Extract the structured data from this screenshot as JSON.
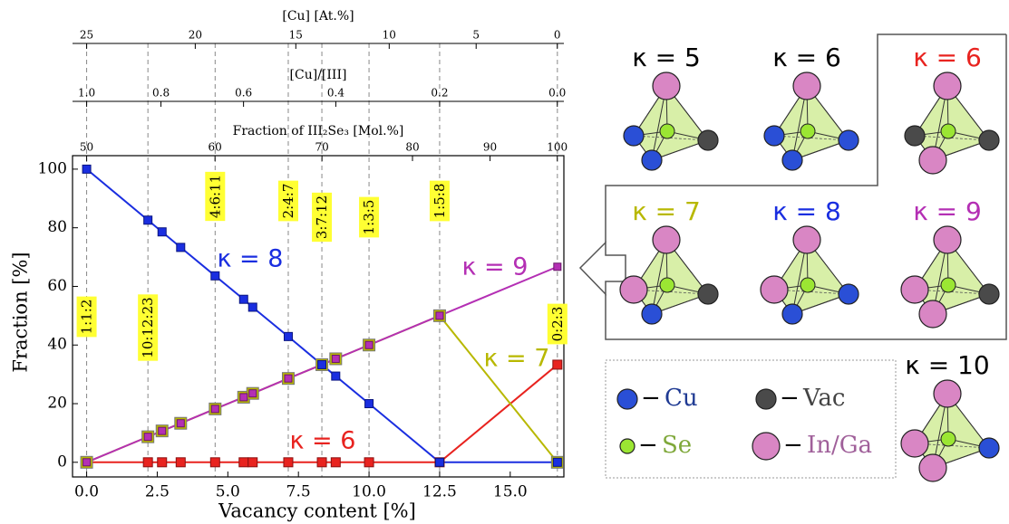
{
  "chart_data": {
    "type": "line",
    "x_label": "Vacancy content [%]",
    "y_label": "Fraction [%]",
    "xlim": [
      -0.5,
      16.9
    ],
    "ylim": [
      -5,
      104.6
    ],
    "xticks": [
      {
        "value": 0,
        "label": "0.0"
      },
      2.5,
      {
        "value": 5,
        "label": "5.0"
      },
      7.5,
      {
        "value": 10,
        "label": "10.0"
      },
      12.5,
      {
        "value": 15,
        "label": "15.0"
      }
    ],
    "yticks": [
      0,
      20,
      40,
      60,
      80,
      100
    ],
    "x": [
      0,
      2.17,
      2.67,
      3.33,
      4.55,
      5.56,
      5.88,
      7.14,
      8.33,
      8.82,
      10,
      12.5,
      16.67
    ],
    "series": [
      {
        "name": "κ = 6",
        "color": "#e8231f",
        "values": [
          0,
          0,
          0,
          0,
          0,
          0,
          0,
          0,
          0,
          0,
          0,
          0,
          33.3
        ]
      },
      {
        "name": "κ = 7",
        "color": "#b8b800",
        "values": [
          0,
          8.7,
          10.7,
          13.3,
          18.2,
          22.2,
          23.5,
          28.6,
          33.3,
          35.3,
          40,
          50,
          0
        ]
      },
      {
        "name": "κ = 9",
        "color": "#b42fb4",
        "values": [
          0,
          8.7,
          10.7,
          13.3,
          18.2,
          22.2,
          23.5,
          28.6,
          33.3,
          35.3,
          40,
          50,
          66.7
        ]
      },
      {
        "name": "κ = 8",
        "color": "#1a2ee0",
        "values": [
          100,
          82.6,
          78.6,
          73.3,
          63.6,
          55.6,
          52.9,
          42.9,
          33.3,
          29.4,
          20,
          0,
          0
        ]
      }
    ],
    "compositions": {
      "labels": [
        "1:1:2",
        "10:12:23",
        "4:6:11",
        "2:4:7",
        "3:7:12",
        "1:3:5",
        "1:5:8",
        "0:2:3"
      ],
      "x": [
        0,
        2.17,
        4.55,
        7.14,
        8.33,
        10,
        12.5,
        16.67
      ]
    },
    "top_axes": [
      {
        "label": "Fraction of III₂Se₃  [Mol.%]",
        "ticks": [
          50,
          60,
          70,
          80,
          90,
          100
        ]
      },
      {
        "label": "[Cu]/[III]",
        "ticks": [
          {
            "value": 1,
            "label": "1.0"
          },
          0.8,
          0.6,
          0.4,
          0.2,
          {
            "value": 0,
            "label": "0.0"
          }
        ]
      },
      {
        "label": "[Cu] [At.%]",
        "ticks": [
          25,
          20,
          15,
          10,
          5,
          0
        ]
      }
    ]
  },
  "diagram": {
    "panels": [
      {
        "label": "κ = 5",
        "color": "#000000"
      },
      {
        "label": "κ = 6",
        "color": "#000000"
      },
      {
        "label": "κ = 6",
        "color": "#e8231f"
      },
      {
        "label": "κ = 7",
        "color": "#b8b800"
      },
      {
        "label": "κ = 8",
        "color": "#1a2ee0"
      },
      {
        "label": "κ = 9",
        "color": "#b42fb4"
      },
      {
        "label": "κ = 10",
        "color": "#000000"
      }
    ],
    "legend": [
      {
        "dash": "−",
        "label": "Cu",
        "color": "#1f3a93"
      },
      {
        "dash": "−",
        "label": "Vac",
        "color": "#444444"
      },
      {
        "dash": "−",
        "label": "Se",
        "color": "#7fa83a"
      },
      {
        "dash": "−",
        "label": "In/Ga",
        "color": "#a0609a"
      }
    ]
  }
}
